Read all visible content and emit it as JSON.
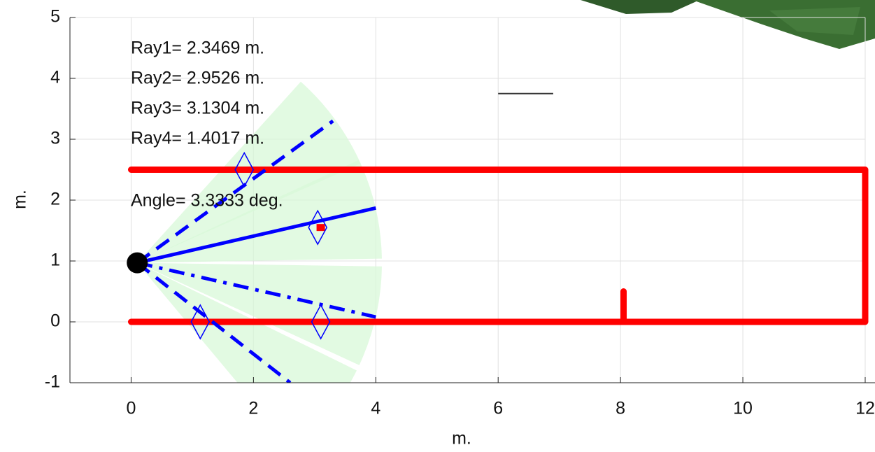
{
  "chart_data": {
    "type": "robot-map",
    "xlabel": "m.",
    "ylabel": "m.",
    "xlim": [
      -1,
      12
    ],
    "ylim": [
      -1,
      5
    ],
    "xticks": [
      0,
      2,
      4,
      6,
      8,
      10,
      12
    ],
    "yticks": [
      -1,
      0,
      1,
      2,
      3,
      4,
      5
    ],
    "grid": true,
    "annotations": [
      "Ray1= 2.3469 m.",
      "Ray2= 2.9526 m.",
      "Ray3= 3.1304 m.",
      "Ray4= 1.4017 m."
    ],
    "angle_label": "Angle= 3.3333 deg.",
    "walls": {
      "color": "#ff0000",
      "x": [
        0,
        12,
        12,
        0,
        null,
        8.05,
        8.05
      ],
      "y": [
        2.5,
        2.5,
        0,
        0,
        null,
        0,
        0.5
      ]
    },
    "robot": {
      "x": 0.1,
      "y": 0.97,
      "color": "#000000"
    },
    "rays": {
      "color": "#0000ff",
      "cone_color": "#d8f8d8",
      "cone_radius": 4,
      "cone_half_angle": 12,
      "items": [
        {
          "x": [
            0.1,
            3.3
          ],
          "y": [
            0.97,
            3.3
          ],
          "style": "dashed"
        },
        {
          "x": [
            0.1,
            4.0
          ],
          "y": [
            0.97,
            1.87
          ],
          "style": "solid"
        },
        {
          "x": [
            0.1,
            4.0
          ],
          "y": [
            0.97,
            0.08
          ],
          "style": "dashdot"
        },
        {
          "x": [
            0.1,
            2.6
          ],
          "y": [
            0.97,
            -1.0
          ],
          "style": "dashed"
        }
      ]
    },
    "hits": {
      "color": "#0000ff",
      "x": [
        1.85,
        3.05,
        3.1,
        1.13
      ],
      "y": [
        2.5,
        1.55,
        0.0,
        0.0
      ]
    },
    "target": {
      "x": 3.1,
      "y": 1.55,
      "color": "#ff0000"
    },
    "segment": {
      "x": [
        6.0,
        6.9
      ],
      "y": [
        3.75,
        3.75
      ],
      "color": "#333333"
    }
  }
}
